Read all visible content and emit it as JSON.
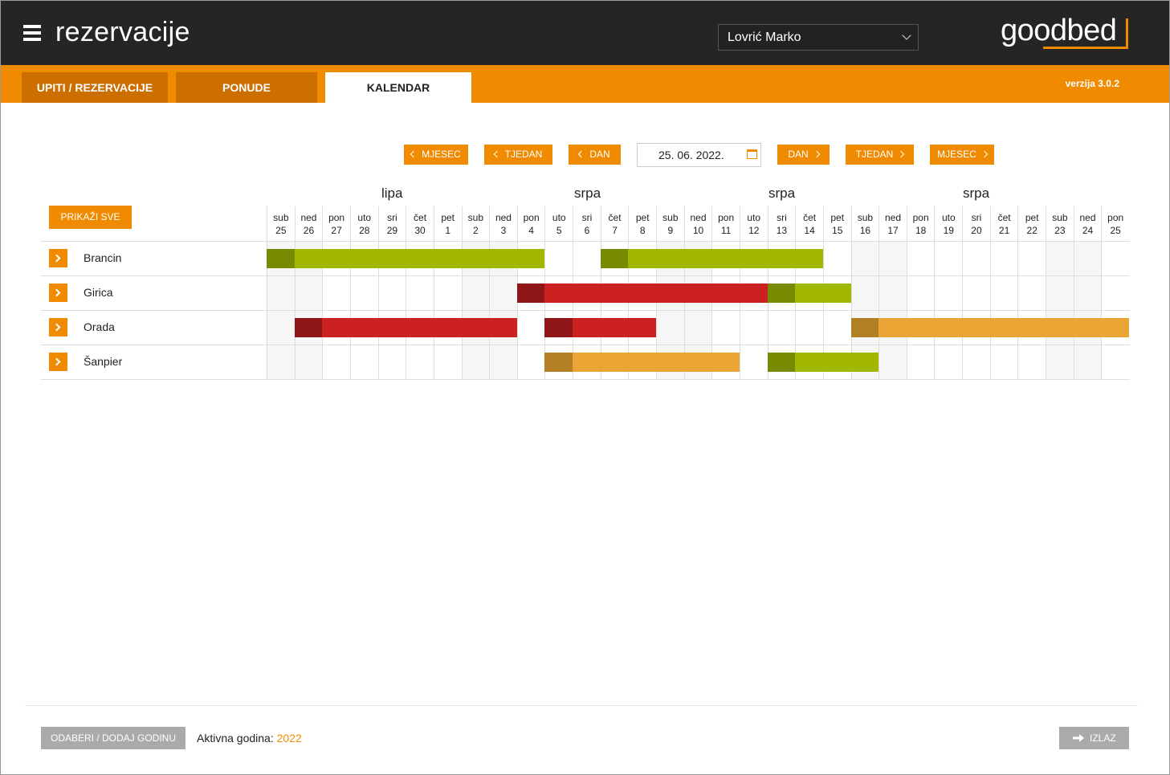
{
  "header": {
    "app_title": "rezervacije",
    "user": "Lovrić Marko",
    "logo": "goodbed"
  },
  "tabs": [
    {
      "label": "UPITI / REZERVACIJE",
      "active": false
    },
    {
      "label": "PONUDE",
      "active": false
    },
    {
      "label": "KALENDAR",
      "active": true
    }
  ],
  "version": "verzija 3.0.2",
  "nav": {
    "prev_month": "MJESEC",
    "prev_week": "TJEDAN",
    "prev_day": "DAN",
    "date": "25. 06. 2022.",
    "next_day": "DAN",
    "next_week": "TJEDAN",
    "next_month": "MJESEC"
  },
  "show_all": "PRIKAŽI SVE",
  "months": [
    "lipa",
    "srpa",
    "srpa",
    "srpa"
  ],
  "days": [
    {
      "dow": "sub",
      "d": "25",
      "weekend": true
    },
    {
      "dow": "ned",
      "d": "26",
      "weekend": true
    },
    {
      "dow": "pon",
      "d": "27",
      "weekend": false
    },
    {
      "dow": "uto",
      "d": "28",
      "weekend": false
    },
    {
      "dow": "sri",
      "d": "29",
      "weekend": false
    },
    {
      "dow": "čet",
      "d": "30",
      "weekend": false
    },
    {
      "dow": "pet",
      "d": "1",
      "weekend": false
    },
    {
      "dow": "sub",
      "d": "2",
      "weekend": true
    },
    {
      "dow": "ned",
      "d": "3",
      "weekend": true
    },
    {
      "dow": "pon",
      "d": "4",
      "weekend": false
    },
    {
      "dow": "uto",
      "d": "5",
      "weekend": false
    },
    {
      "dow": "sri",
      "d": "6",
      "weekend": false
    },
    {
      "dow": "čet",
      "d": "7",
      "weekend": false
    },
    {
      "dow": "pet",
      "d": "8",
      "weekend": false
    },
    {
      "dow": "sub",
      "d": "9",
      "weekend": true
    },
    {
      "dow": "ned",
      "d": "10",
      "weekend": true
    },
    {
      "dow": "pon",
      "d": "11",
      "weekend": false
    },
    {
      "dow": "uto",
      "d": "12",
      "weekend": false
    },
    {
      "dow": "sri",
      "d": "13",
      "weekend": false
    },
    {
      "dow": "čet",
      "d": "14",
      "weekend": false
    },
    {
      "dow": "pet",
      "d": "15",
      "weekend": false
    },
    {
      "dow": "sub",
      "d": "16",
      "weekend": true
    },
    {
      "dow": "ned",
      "d": "17",
      "weekend": true
    },
    {
      "dow": "pon",
      "d": "18",
      "weekend": false
    },
    {
      "dow": "uto",
      "d": "19",
      "weekend": false
    },
    {
      "dow": "sri",
      "d": "20",
      "weekend": false
    },
    {
      "dow": "čet",
      "d": "21",
      "weekend": false
    },
    {
      "dow": "pet",
      "d": "22",
      "weekend": false
    },
    {
      "dow": "sub",
      "d": "23",
      "weekend": true
    },
    {
      "dow": "ned",
      "d": "24",
      "weekend": true
    },
    {
      "dow": "pon",
      "d": "25",
      "weekend": false
    }
  ],
  "units": [
    {
      "name": "Brancin",
      "bookings": [
        {
          "start": 0,
          "end": 10,
          "color": "green"
        },
        {
          "start": 12,
          "end": 20,
          "color": "green"
        }
      ]
    },
    {
      "name": "Girica",
      "bookings": [
        {
          "start": 9,
          "end": 18,
          "color": "red"
        },
        {
          "start": 18,
          "end": 21,
          "color": "green"
        }
      ]
    },
    {
      "name": "Orada",
      "bookings": [
        {
          "start": 1,
          "end": 9,
          "color": "red"
        },
        {
          "start": 10,
          "end": 14,
          "color": "red"
        },
        {
          "start": 21,
          "end": 31,
          "color": "orange"
        }
      ]
    },
    {
      "name": "Šanpier",
      "bookings": [
        {
          "start": 10,
          "end": 17,
          "color": "orange"
        },
        {
          "start": 18,
          "end": 22,
          "color": "green"
        }
      ]
    }
  ],
  "colors": {
    "accent": "#f08a00",
    "green": "#a2b800",
    "green_dark": "#7a8a00",
    "red": "#cc2121",
    "red_dark": "#8f1616",
    "orange": "#eba534",
    "orange_dark": "#b37f25"
  },
  "footer": {
    "year_button": "ODABERI / DODAJ GODINU",
    "active_year_label": "Aktivna godina: ",
    "active_year": "2022",
    "exit": "IZLAZ"
  }
}
